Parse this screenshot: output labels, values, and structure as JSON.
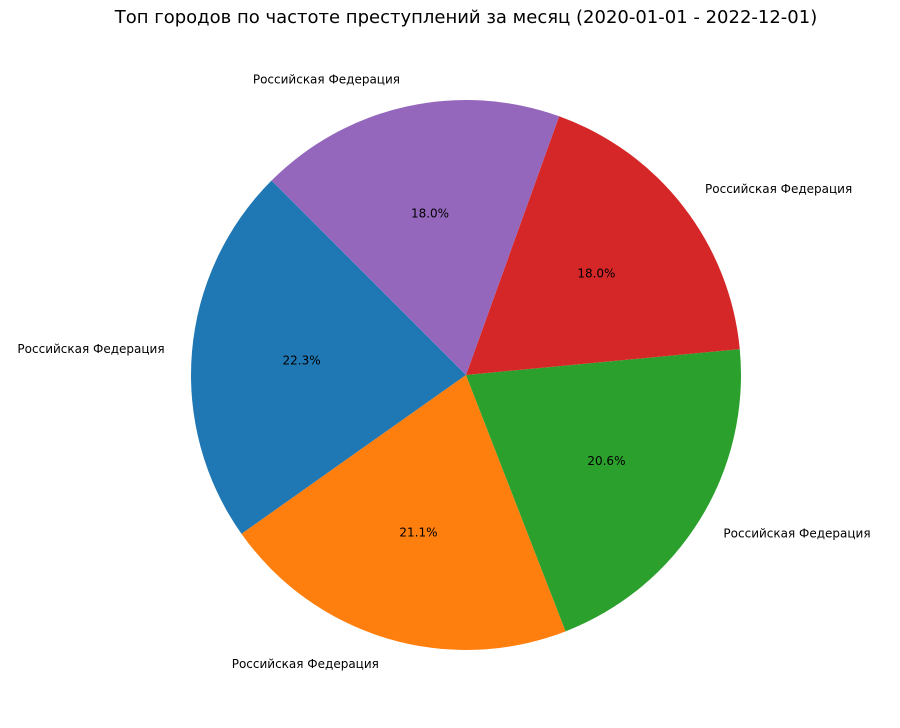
{
  "chart_data": {
    "type": "pie",
    "title": "Топ городов по частоте преступлений за месяц (2020-01-01 - 2022-12-01)",
    "categories": [
      "Российская Федерация",
      "Российская Федерация",
      "Российская Федерация",
      "Российская Федерация",
      "Российская Федерация"
    ],
    "values": [
      22.3,
      21.1,
      20.6,
      18.0,
      18.0
    ],
    "value_labels": [
      "22.3%",
      "21.1%",
      "20.6%",
      "18.0%",
      "18.0%"
    ],
    "colors": [
      "#1f77b4",
      "#ff7f0e",
      "#2ca02c",
      "#d62728",
      "#9467bd"
    ]
  }
}
